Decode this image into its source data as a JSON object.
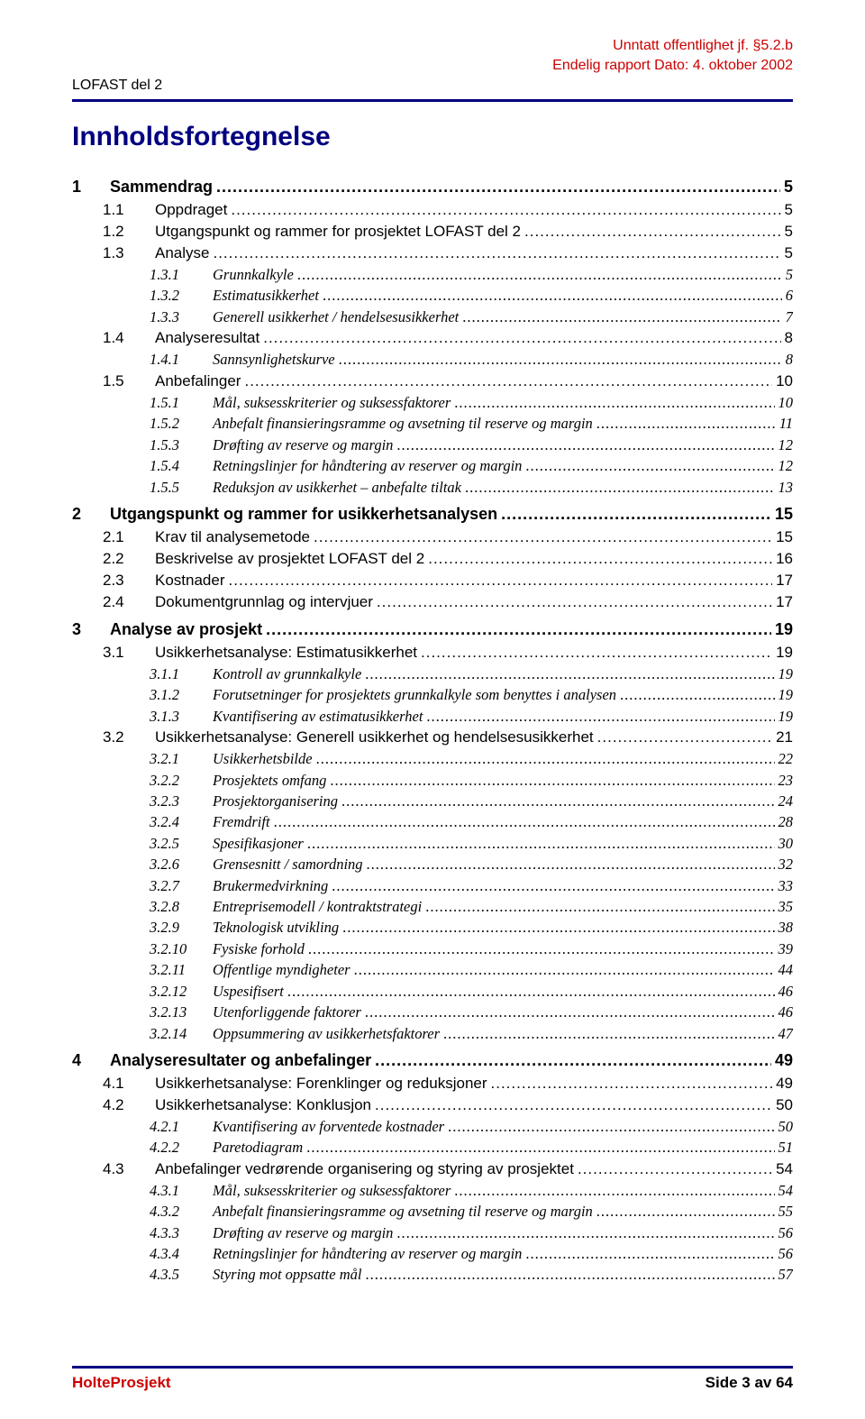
{
  "header": {
    "left": "LOFAST del 2",
    "right_line1": "Unntatt offentlighet jf. §5.2.b",
    "right_line2": "Endelig rapport  Dato: 4. oktober 2002"
  },
  "title": "Innholdsfortegnelse",
  "toc": [
    {
      "level": 1,
      "num": "1",
      "text": "Sammendrag",
      "page": "5"
    },
    {
      "level": 2,
      "num": "1.1",
      "text": "Oppdraget",
      "page": "5"
    },
    {
      "level": 2,
      "num": "1.2",
      "text": "Utgangspunkt og rammer for prosjektet LOFAST del 2",
      "page": "5"
    },
    {
      "level": 2,
      "num": "1.3",
      "text": "Analyse",
      "page": "5"
    },
    {
      "level": 3,
      "num": "1.3.1",
      "text": "Grunnkalkyle",
      "page": "5"
    },
    {
      "level": 3,
      "num": "1.3.2",
      "text": "Estimatusikkerhet",
      "page": "6"
    },
    {
      "level": 3,
      "num": "1.3.3",
      "text": "Generell usikkerhet / hendelsesusikkerhet",
      "page": "7"
    },
    {
      "level": 2,
      "num": "1.4",
      "text": "Analyseresultat",
      "page": "8"
    },
    {
      "level": 3,
      "num": "1.4.1",
      "text": "Sannsynlighetskurve",
      "page": "8"
    },
    {
      "level": 2,
      "num": "1.5",
      "text": "Anbefalinger",
      "page": "10"
    },
    {
      "level": 3,
      "num": "1.5.1",
      "text": "Mål, suksesskriterier og suksessfaktorer",
      "page": "10"
    },
    {
      "level": 3,
      "num": "1.5.2",
      "text": "Anbefalt finansieringsramme og avsetning til reserve og margin",
      "page": "11"
    },
    {
      "level": 3,
      "num": "1.5.3",
      "text": "Drøfting av reserve og margin",
      "page": "12"
    },
    {
      "level": 3,
      "num": "1.5.4",
      "text": "Retningslinjer for håndtering av reserver og margin",
      "page": "12"
    },
    {
      "level": 3,
      "num": "1.5.5",
      "text": "Reduksjon av usikkerhet – anbefalte tiltak",
      "page": "13"
    },
    {
      "level": 1,
      "num": "2",
      "text": "Utgangspunkt og rammer for usikkerhetsanalysen",
      "page": "15"
    },
    {
      "level": 2,
      "num": "2.1",
      "text": "Krav til analysemetode",
      "page": "15"
    },
    {
      "level": 2,
      "num": "2.2",
      "text": "Beskrivelse av prosjektet LOFAST del 2",
      "page": "16"
    },
    {
      "level": 2,
      "num": "2.3",
      "text": "Kostnader",
      "page": "17"
    },
    {
      "level": 2,
      "num": "2.4",
      "text": "Dokumentgrunnlag og intervjuer",
      "page": "17"
    },
    {
      "level": 1,
      "num": "3",
      "text": "Analyse av prosjekt",
      "page": "19"
    },
    {
      "level": 2,
      "num": "3.1",
      "text": "Usikkerhetsanalyse: Estimatusikkerhet",
      "page": "19"
    },
    {
      "level": 3,
      "num": "3.1.1",
      "text": "Kontroll av grunnkalkyle",
      "page": "19"
    },
    {
      "level": 3,
      "num": "3.1.2",
      "text": "Forutsetninger for prosjektets grunnkalkyle som benyttes i analysen",
      "page": "19"
    },
    {
      "level": 3,
      "num": "3.1.3",
      "text": "Kvantifisering av estimatusikkerhet",
      "page": "19"
    },
    {
      "level": 2,
      "num": "3.2",
      "text": "Usikkerhetsanalyse: Generell usikkerhet og hendelsesusikkerhet",
      "page": "21"
    },
    {
      "level": 3,
      "num": "3.2.1",
      "text": "Usikkerhetsbilde",
      "page": "22"
    },
    {
      "level": 3,
      "num": "3.2.2",
      "text": "Prosjektets omfang",
      "page": "23"
    },
    {
      "level": 3,
      "num": "3.2.3",
      "text": "Prosjektorganisering",
      "page": "24"
    },
    {
      "level": 3,
      "num": "3.2.4",
      "text": "Fremdrift",
      "page": "28"
    },
    {
      "level": 3,
      "num": "3.2.5",
      "text": "Spesifikasjoner",
      "page": "30"
    },
    {
      "level": 3,
      "num": "3.2.6",
      "text": "Grensesnitt / samordning",
      "page": "32"
    },
    {
      "level": 3,
      "num": "3.2.7",
      "text": "Brukermedvirkning",
      "page": "33"
    },
    {
      "level": 3,
      "num": "3.2.8",
      "text": "Entreprisemodell / kontraktstrategi",
      "page": "35"
    },
    {
      "level": 3,
      "num": "3.2.9",
      "text": "Teknologisk utvikling",
      "page": "38"
    },
    {
      "level": 3,
      "num": "3.2.10",
      "text": "Fysiske forhold",
      "page": "39"
    },
    {
      "level": 3,
      "num": "3.2.11",
      "text": "Offentlige myndigheter",
      "page": "44"
    },
    {
      "level": 3,
      "num": "3.2.12",
      "text": "Uspesifisert",
      "page": "46"
    },
    {
      "level": 3,
      "num": "3.2.13",
      "text": "Utenforliggende faktorer",
      "page": "46"
    },
    {
      "level": 3,
      "num": "3.2.14",
      "text": "Oppsummering av usikkerhetsfaktorer",
      "page": "47"
    },
    {
      "level": 1,
      "num": "4",
      "text": "Analyseresultater og anbefalinger",
      "page": "49"
    },
    {
      "level": 2,
      "num": "4.1",
      "text": "Usikkerhetsanalyse: Forenklinger og reduksjoner",
      "page": "49"
    },
    {
      "level": 2,
      "num": "4.2",
      "text": "Usikkerhetsanalyse: Konklusjon",
      "page": "50"
    },
    {
      "level": 3,
      "num": "4.2.1",
      "text": "Kvantifisering av forventede kostnader",
      "page": "50"
    },
    {
      "level": 3,
      "num": "4.2.2",
      "text": "Paretodiagram",
      "page": "51"
    },
    {
      "level": 2,
      "num": "4.3",
      "text": "Anbefalinger vedrørende organisering og styring av prosjektet",
      "page": "54"
    },
    {
      "level": 3,
      "num": "4.3.1",
      "text": "Mål, suksesskriterier og suksessfaktorer",
      "page": "54"
    },
    {
      "level": 3,
      "num": "4.3.2",
      "text": "Anbefalt finansieringsramme og avsetning til reserve og margin",
      "page": "55"
    },
    {
      "level": 3,
      "num": "4.3.3",
      "text": "Drøfting av reserve og margin",
      "page": "56"
    },
    {
      "level": 3,
      "num": "4.3.4",
      "text": "Retningslinjer for håndtering av reserver og margin",
      "page": "56"
    },
    {
      "level": 3,
      "num": "4.3.5",
      "text": "Styring mot oppsatte mål",
      "page": "57"
    }
  ],
  "footer": {
    "left": "HolteProsjekt",
    "right": "Side 3 av 64"
  },
  "colors": {
    "accent": "#000080",
    "warn": "#cc0000",
    "text": "#000000",
    "bg": "#ffffff"
  }
}
